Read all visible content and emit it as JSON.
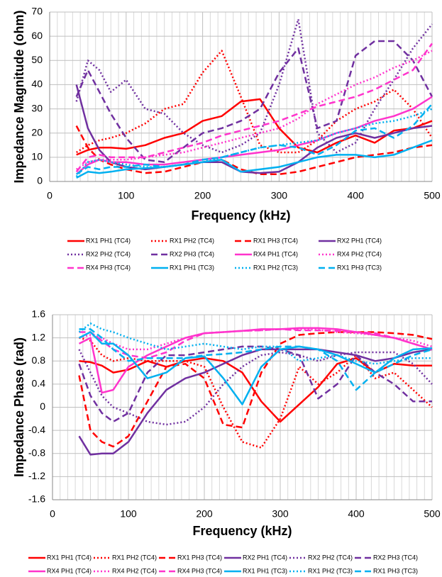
{
  "chart_data": [
    {
      "type": "line",
      "xlabel": "Frequency (kHz)",
      "ylabel": "Impedance Magnitude (ohm)",
      "xlim": [
        0,
        500
      ],
      "xticks": [
        0,
        100,
        200,
        300,
        400,
        500
      ],
      "ylim": [
        0,
        70
      ],
      "yticks": [
        0,
        10,
        20,
        30,
        40,
        50,
        60,
        70
      ],
      "grid": true,
      "x": [
        35,
        50,
        65,
        80,
        100,
        125,
        150,
        175,
        200,
        225,
        250,
        275,
        300,
        325,
        350,
        375,
        400,
        425,
        450,
        475,
        500
      ],
      "series": [
        {
          "name": "RX1 PH1 (TC4)",
          "color": "#ff0000",
          "style": "solid",
          "values": [
            11,
            13,
            14,
            14,
            13.5,
            15,
            18,
            20,
            25,
            27,
            33,
            34,
            22,
            14,
            12,
            16,
            19,
            16,
            21,
            22,
            25
          ]
        },
        {
          "name": "RX1 PH2 (TC4)",
          "color": "#ff0000",
          "style": "dotted",
          "values": [
            12,
            15,
            17,
            18,
            20,
            24,
            30,
            32,
            45,
            54,
            35,
            15,
            12,
            12,
            17,
            25,
            30,
            33,
            38,
            30,
            18
          ]
        },
        {
          "name": "RX1 PH3 (TC4)",
          "color": "#ff0000",
          "style": "dashed",
          "values": [
            23,
            14,
            9,
            7,
            5,
            3.5,
            4,
            6,
            8,
            9,
            5,
            3,
            3,
            4,
            6,
            8,
            10,
            11,
            12,
            14,
            15
          ]
        },
        {
          "name": "RX2 PH1 (TC4)",
          "color": "#7030a0",
          "style": "solid",
          "values": [
            40,
            22,
            13,
            8,
            6,
            5,
            6,
            7,
            8,
            8,
            4,
            3.5,
            4,
            8,
            14,
            18,
            20,
            18,
            20,
            22,
            23
          ]
        },
        {
          "name": "RX2 PH2 (TC4)",
          "color": "#7030a0",
          "style": "dotted",
          "values": [
            33,
            50,
            46,
            37,
            42,
            30,
            28,
            20,
            15,
            12,
            15,
            20,
            40,
            67,
            20,
            12,
            16,
            30,
            42,
            55,
            65
          ]
        },
        {
          "name": "RX2 PH3 (TC4)",
          "color": "#7030a0",
          "style": "dashed",
          "values": [
            35,
            46,
            37,
            28,
            18,
            9,
            8,
            14,
            20,
            22,
            25,
            30,
            45,
            55,
            22,
            25,
            52,
            58,
            58,
            50,
            35
          ]
        },
        {
          "name": "RX4 PH1 (TC4)",
          "color": "#ff33cc",
          "style": "solid",
          "values": [
            3,
            7,
            9,
            8,
            8,
            7,
            7,
            8,
            9,
            10,
            11,
            12,
            13,
            15,
            17,
            20,
            22,
            25,
            27,
            30,
            35
          ]
        },
        {
          "name": "RX4 PH2 (TC4)",
          "color": "#ff33cc",
          "style": "dotted",
          "values": [
            5,
            8,
            9,
            9,
            9,
            10,
            11,
            12,
            14,
            16,
            18,
            20,
            22,
            26,
            32,
            36,
            40,
            43,
            47,
            50,
            54
          ]
        },
        {
          "name": "RX4 PH3 (TC4)",
          "color": "#ff33cc",
          "style": "dashed",
          "values": [
            4,
            10,
            11,
            10,
            10,
            10,
            12,
            14,
            16,
            19,
            21,
            23,
            25,
            28,
            31,
            33,
            35,
            38,
            42,
            46,
            57
          ]
        },
        {
          "name": "RX1 PH1 (TC3)",
          "color": "#00b0f0",
          "style": "solid",
          "values": [
            1.5,
            4,
            3.5,
            4,
            5,
            5.5,
            6,
            7,
            8,
            9,
            4,
            5,
            6,
            8,
            10,
            11,
            11,
            10,
            11,
            14,
            17
          ]
        },
        {
          "name": "RX1 PH2 (TC3)",
          "color": "#00b0f0",
          "style": "dotted",
          "values": [
            2,
            8,
            9,
            8,
            7,
            6,
            6,
            7,
            8,
            10,
            12,
            14,
            15,
            16,
            17,
            20,
            22,
            24,
            25,
            27,
            30
          ]
        },
        {
          "name": "RX1 PH3 (TC3)",
          "color": "#00b0f0",
          "style": "dashed",
          "values": [
            3,
            6,
            5,
            6,
            6,
            7,
            6,
            7,
            9,
            10,
            12,
            14,
            15,
            14,
            11,
            15,
            21,
            22,
            18,
            23,
            32
          ]
        }
      ]
    },
    {
      "type": "line",
      "xlabel": "Frequency (kHz)",
      "ylabel": "Impedance Phase (rad)",
      "xlim": [
        0,
        500
      ],
      "xticks": [
        0,
        100,
        200,
        300,
        400,
        500
      ],
      "ylim": [
        -1.6,
        1.6
      ],
      "yticks": [
        -1.6,
        -1.2,
        -0.8,
        -0.4,
        0,
        0.4,
        0.8,
        1.2,
        1.6
      ],
      "grid": true,
      "x": [
        35,
        50,
        65,
        80,
        100,
        125,
        150,
        175,
        200,
        225,
        250,
        275,
        300,
        325,
        350,
        375,
        400,
        425,
        450,
        475,
        500
      ],
      "series": [
        {
          "name": "RX1 PH1 (TC4)",
          "color": "#ff0000",
          "style": "solid",
          "values": [
            0.8,
            0.78,
            0.72,
            0.6,
            0.65,
            0.8,
            0.7,
            0.8,
            0.85,
            0.8,
            0.6,
            0.1,
            -0.25,
            0.05,
            0.35,
            0.75,
            0.85,
            0.6,
            0.75,
            0.72,
            0.72
          ]
        },
        {
          "name": "RX1 PH2 (TC4)",
          "color": "#ff0000",
          "style": "dotted",
          "values": [
            1.2,
            1.15,
            0.9,
            0.8,
            0.85,
            0.8,
            0.8,
            0.8,
            0.7,
            0.0,
            -0.6,
            -0.7,
            -0.2,
            0.7,
            0.4,
            0.6,
            0.9,
            0.5,
            0.6,
            0.3,
            0.0
          ]
        },
        {
          "name": "RX1 PH3 (TC4)",
          "color": "#ff0000",
          "style": "dashed",
          "values": [
            0.55,
            -0.4,
            -0.6,
            -0.68,
            -0.5,
            0.1,
            0.7,
            0.75,
            0.5,
            -0.3,
            -0.35,
            0.6,
            1.1,
            1.25,
            1.28,
            1.3,
            1.3,
            1.3,
            1.28,
            1.25,
            1.18
          ]
        },
        {
          "name": "RX2 PH1 (TC4)",
          "color": "#7030a0",
          "style": "solid",
          "values": [
            -0.5,
            -0.82,
            -0.8,
            -0.8,
            -0.6,
            -0.1,
            0.3,
            0.5,
            0.6,
            0.75,
            0.9,
            1.0,
            1.0,
            1.0,
            1.0,
            0.95,
            0.9,
            0.8,
            0.85,
            0.95,
            1.0
          ]
        },
        {
          "name": "RX2 PH2 (TC4)",
          "color": "#7030a0",
          "style": "dotted",
          "values": [
            1.0,
            0.6,
            0.2,
            0.0,
            -0.1,
            -0.25,
            -0.3,
            -0.25,
            0.0,
            0.4,
            0.7,
            0.9,
            0.95,
            0.9,
            0.8,
            0.9,
            0.95,
            0.95,
            0.95,
            0.75,
            0.4
          ]
        },
        {
          "name": "RX2 PH3 (TC4)",
          "color": "#7030a0",
          "style": "dashed",
          "values": [
            0.75,
            0.2,
            -0.1,
            -0.25,
            -0.1,
            0.6,
            0.9,
            0.9,
            0.95,
            1.0,
            1.05,
            1.05,
            1.0,
            0.9,
            0.15,
            0.4,
            0.9,
            0.6,
            0.4,
            0.1,
            0.1
          ]
        },
        {
          "name": "RX4 PH1 (TC4)",
          "color": "#ff33cc",
          "style": "solid",
          "values": [
            1.1,
            1.2,
            0.25,
            0.3,
            0.7,
            0.9,
            1.05,
            1.2,
            1.28,
            1.3,
            1.32,
            1.35,
            1.35,
            1.37,
            1.37,
            1.35,
            1.3,
            1.25,
            1.2,
            1.1,
            1.0
          ]
        },
        {
          "name": "RX4 PH2 (TC4)",
          "color": "#ff33cc",
          "style": "dotted",
          "values": [
            1.2,
            1.25,
            1.2,
            1.1,
            1.0,
            1.0,
            1.1,
            1.2,
            1.28,
            1.3,
            1.32,
            1.33,
            1.35,
            1.35,
            1.34,
            1.3,
            1.28,
            1.25,
            1.2,
            1.15,
            1.05
          ]
        },
        {
          "name": "RX4 PH3 (TC4)",
          "color": "#ff33cc",
          "style": "dashed",
          "values": [
            1.3,
            1.3,
            1.15,
            1.0,
            0.9,
            0.85,
            0.95,
            1.15,
            1.28,
            1.3,
            1.32,
            1.33,
            1.35,
            1.33,
            1.33,
            1.32,
            1.3,
            1.28,
            1.2,
            1.1,
            1.0
          ]
        },
        {
          "name": "RX1 PH1 (TC3)",
          "color": "#00b0f0",
          "style": "solid",
          "values": [
            1.2,
            1.3,
            1.1,
            1.1,
            0.9,
            0.5,
            0.6,
            0.85,
            0.88,
            0.5,
            0.05,
            0.7,
            1.0,
            1.05,
            1.0,
            0.9,
            0.75,
            0.6,
            0.85,
            1.0,
            1.02
          ]
        },
        {
          "name": "RX1 PH2 (TC3)",
          "color": "#00b0f0",
          "style": "dotted",
          "values": [
            1.3,
            1.45,
            1.35,
            1.3,
            1.2,
            1.1,
            1.0,
            1.05,
            1.1,
            1.05,
            1.0,
            1.05,
            1.05,
            0.8,
            0.85,
            0.9,
            0.8,
            0.75,
            0.8,
            0.85,
            0.85
          ]
        },
        {
          "name": "RX1 PH3 (TC3)",
          "color": "#00b0f0",
          "style": "dashed",
          "values": [
            1.35,
            1.35,
            1.2,
            1.0,
            0.8,
            0.85,
            0.85,
            0.85,
            0.9,
            0.92,
            0.95,
            1.0,
            1.05,
            1.05,
            1.0,
            0.8,
            0.3,
            0.6,
            0.75,
            0.9,
            1.0
          ]
        }
      ]
    }
  ]
}
